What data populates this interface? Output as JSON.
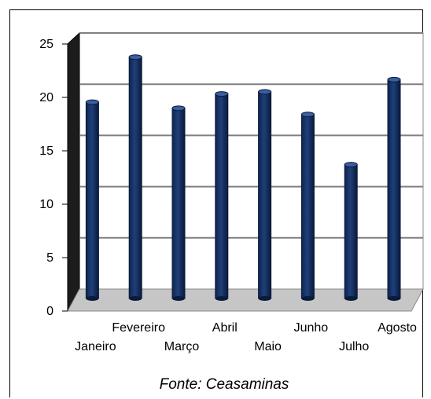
{
  "chart_data": {
    "type": "bar",
    "style": "3d-cylinder-columns",
    "categories": [
      "Janeiro",
      "Fevereiro",
      "Março",
      "Abril",
      "Maio",
      "Junho",
      "Julho",
      "Agosto"
    ],
    "values": [
      18.4,
      22.8,
      17.8,
      19.2,
      19.4,
      17.2,
      12.3,
      20.6
    ],
    "ylim": [
      0,
      25
    ],
    "yticks": [
      0,
      5,
      10,
      15,
      20,
      25
    ],
    "grid": true,
    "legend": false,
    "colors": {
      "bar": "#1f3f7a",
      "back_wall": "#ffffff",
      "side_wall": "#1c1c1c",
      "floor": "#c6c6c6",
      "grid": "#808080"
    }
  },
  "source_note": "Fonte: Ceasaminas"
}
